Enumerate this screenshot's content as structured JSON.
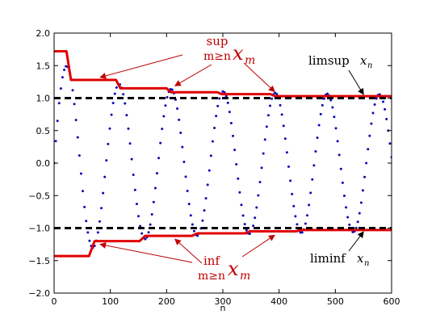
{
  "chart_data": {
    "type": "line",
    "title": "",
    "xlabel": "n",
    "ylabel": "",
    "xlim": [
      0,
      600
    ],
    "ylim": [
      -2.0,
      2.0
    ],
    "xticks": [
      0,
      100,
      200,
      300,
      400,
      500,
      600
    ],
    "yticks": [
      -2.0,
      -1.5,
      -1.0,
      -0.5,
      0.0,
      0.5,
      1.0,
      1.5,
      2.0
    ],
    "xtick_labels": [
      "0",
      "100",
      "200",
      "300",
      "400",
      "500",
      "600"
    ],
    "ytick_labels": [
      "−2.0",
      "−1.5",
      "−1.0",
      "−0.5",
      "0.0",
      "0.5",
      "1.0",
      "1.5",
      "2.0"
    ],
    "grid": false,
    "colors": {
      "sequence": "#0a0ab4",
      "envelope": "#e00000",
      "limit": "#000000",
      "annotation": "#c00000"
    },
    "series": [
      {
        "style": "dotted",
        "formula": "x_n = (1 + 1/(n/36+1.4)) * sin(2*pi*n/92.5)",
        "x_range": [
          0,
          600
        ],
        "step": 3
      },
      {
        "style": "red-step",
        "x": [
          0,
          22,
          30,
          110,
          118,
          200,
          208,
          290,
          298,
          385,
          393,
          600
        ],
        "y": [
          1.72,
          1.72,
          1.28,
          1.28,
          1.15,
          1.15,
          1.09,
          1.09,
          1.06,
          1.06,
          1.03,
          1.03
        ]
      },
      {
        "style": "red-step",
        "x": [
          0,
          62,
          72,
          152,
          162,
          245,
          255,
          340,
          348,
          430,
          440,
          600
        ],
        "y": [
          -1.43,
          -1.43,
          -1.2,
          -1.2,
          -1.12,
          -1.12,
          -1.08,
          -1.08,
          -1.05,
          -1.05,
          -1.03,
          -1.03
        ]
      },
      {
        "style": "black-dashed",
        "x": [
          0,
          600
        ],
        "y": [
          1.0,
          1.0
        ]
      },
      {
        "style": "black-dashed",
        "x": [
          0,
          600
        ],
        "y": [
          -1.0,
          -1.0
        ]
      }
    ],
    "annotations": {
      "sup_top": "sup",
      "sup_sub": "m≥n",
      "sup_var": "x",
      "sup_var_sub": "m",
      "inf_top": "inf",
      "inf_sub": "m≥n",
      "inf_var": "x",
      "inf_var_sub": "m",
      "limsup": "limsup",
      "limsup_var": "x",
      "limsup_var_sub": "n",
      "liminf": "liminf",
      "liminf_var": "x",
      "liminf_var_sub": "n",
      "sup_arrow_targets": [
        [
          82,
          1.27
        ],
        [
          215,
          1.14
        ],
        [
          392,
          1.05
        ]
      ],
      "inf_arrow_targets": [
        [
          82,
          -1.2
        ],
        [
          215,
          -1.12
        ],
        [
          392,
          -1.06
        ]
      ],
      "limsup_arrow_target": [
        550,
        1.02
      ],
      "liminf_arrow_target": [
        550,
        -1.02
      ]
    }
  }
}
